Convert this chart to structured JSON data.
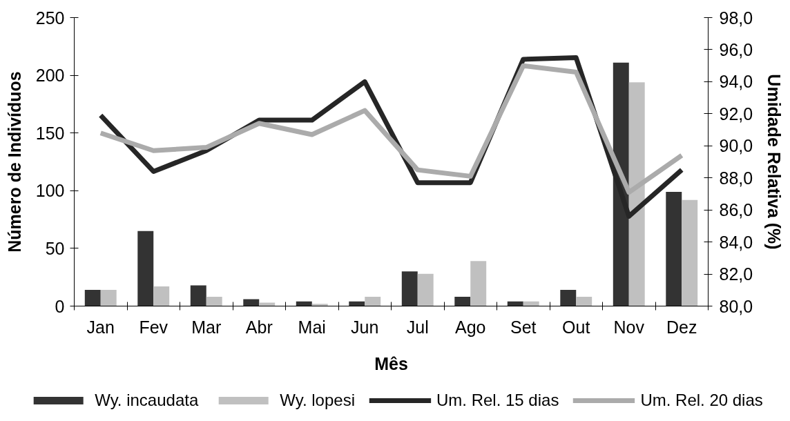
{
  "chart_data": {
    "type": "bar",
    "xlabel": "Mês",
    "ylabel": "Número de Indivíduos",
    "y2label": "Umidade Relativa (%)",
    "categories": [
      "Jan",
      "Fev",
      "Mar",
      "Abr",
      "Mai",
      "Jun",
      "Jul",
      "Ago",
      "Set",
      "Out",
      "Nov",
      "Dez"
    ],
    "series": [
      {
        "name": "Wy. incaudata",
        "color": "#333333",
        "values": [
          14,
          65,
          18,
          6,
          4,
          4,
          30,
          8,
          4,
          14,
          211,
          99
        ]
      },
      {
        "name": "Wy. lopesi",
        "color": "#c0c0c0",
        "values": [
          14,
          17,
          8,
          3,
          2,
          8,
          28,
          39,
          4,
          8,
          194,
          92
        ]
      },
      {
        "name": "Um. Rel. 15 dias",
        "type": "line",
        "axis": "y2",
        "color": "#262626",
        "values": [
          91.9,
          88.4,
          89.7,
          91.6,
          91.6,
          94.0,
          87.7,
          87.7,
          95.4,
          95.5,
          85.6,
          88.5
        ]
      },
      {
        "name": "Um. Rel. 20 dias",
        "type": "line",
        "axis": "y2",
        "color": "#ababab",
        "values": [
          90.8,
          89.7,
          89.9,
          91.4,
          90.7,
          92.2,
          88.5,
          88.1,
          95.0,
          94.6,
          87.1,
          89.4
        ]
      }
    ],
    "ylim": [
      0,
      250
    ],
    "yticks": [
      0,
      50,
      100,
      150,
      200,
      250
    ],
    "y2lim": [
      80,
      98
    ],
    "y2ticks": [
      {
        "value": 80,
        "label": "80,0"
      },
      {
        "value": 82,
        "label": "82,0"
      },
      {
        "value": 84,
        "label": "84,0"
      },
      {
        "value": 86,
        "label": "86,0"
      },
      {
        "value": 88,
        "label": "88,0"
      },
      {
        "value": 90,
        "label": "90,0"
      },
      {
        "value": 92,
        "label": "92,0"
      },
      {
        "value": 94,
        "label": "94,0"
      },
      {
        "value": 96,
        "label": "96,0"
      },
      {
        "value": 98,
        "label": "98,0"
      }
    ],
    "legend": "bottom"
  }
}
